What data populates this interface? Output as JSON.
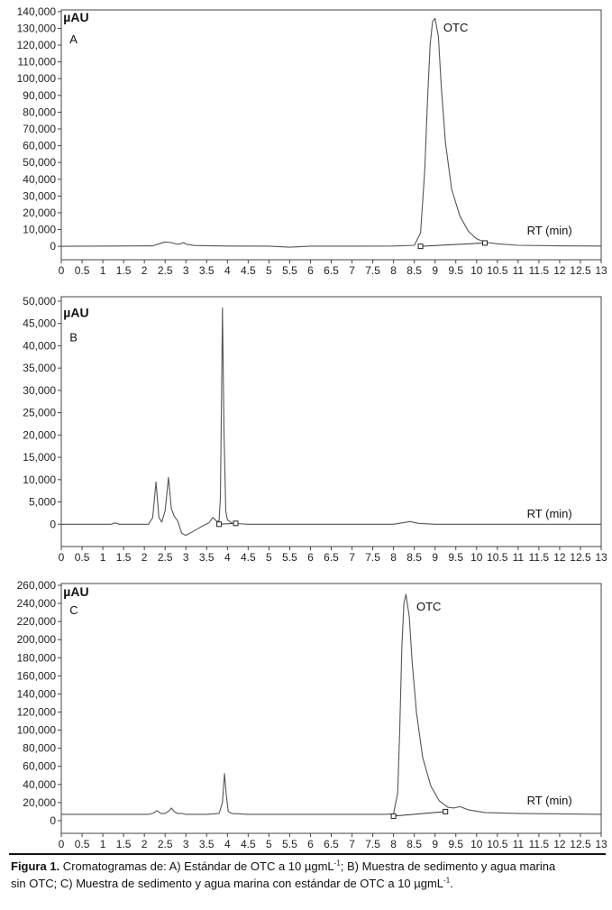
{
  "chart_data": [
    {
      "type": "line",
      "panel_label": "A",
      "unit_label": "µAU",
      "peak_label": "OTC",
      "axis_note": "RT (min)",
      "xlim": [
        0,
        13
      ],
      "ylim": [
        -8000,
        141000
      ],
      "y_ticks": [
        0,
        10000,
        20000,
        30000,
        40000,
        50000,
        60000,
        70000,
        80000,
        90000,
        100000,
        110000,
        120000,
        130000,
        140000
      ],
      "y_tick_labels": [
        "0",
        "10,000",
        "20,000",
        "30,000",
        "40,000",
        "50,000",
        "60,000",
        "70,000",
        "80,000",
        "90,000",
        "100,000",
        "110,000",
        "120,000",
        "130,000",
        "140,000"
      ],
      "x_ticks": [
        0,
        0.5,
        1,
        1.5,
        2,
        2.5,
        3,
        3.5,
        4,
        4.5,
        5,
        5.5,
        6,
        6.5,
        7,
        7.5,
        8,
        8.5,
        9,
        9.5,
        10,
        10.5,
        11,
        11.5,
        12,
        12.5,
        13
      ],
      "x_tick_labels": [
        "0",
        "0.5",
        "1",
        "1.5",
        "2",
        "2.5",
        "3",
        "3.5",
        "4",
        "4.5",
        "5",
        "5.5",
        "6",
        "6.5",
        "7",
        "7.5",
        "8",
        "8.5",
        "9",
        "9.5",
        "10",
        "10.5",
        "11",
        "11.5",
        "12",
        "12.5",
        "13"
      ],
      "series": [
        {
          "x": [
            0,
            2.2,
            2.35,
            2.5,
            2.65,
            2.8,
            2.9,
            2.95,
            3.0,
            3.2,
            4.0,
            5.0,
            5.5,
            6.0,
            7.0,
            8.0,
            8.5,
            8.65,
            8.75,
            8.82,
            8.88,
            8.94,
            9.0,
            9.08,
            9.15,
            9.25,
            9.4,
            9.6,
            9.8,
            10.0,
            10.2,
            10.5,
            11.0,
            12.0,
            13.0
          ],
          "y": [
            0,
            300,
            1500,
            2600,
            2200,
            1200,
            1800,
            2300,
            1300,
            500,
            200,
            100,
            -500,
            100,
            100,
            200,
            600,
            8000,
            45000,
            88000,
            120000,
            134000,
            136000,
            125000,
            95000,
            62000,
            34000,
            18000,
            9000,
            4500,
            2500,
            1500,
            600,
            300,
            200
          ]
        }
      ],
      "baseline": {
        "x": [
          8.65,
          10.2
        ],
        "y": [
          0,
          2000
        ]
      },
      "markers": [
        {
          "x": 8.65,
          "y": 0
        },
        {
          "x": 10.2,
          "y": 2000
        }
      ],
      "label_positions": {
        "peak": [
          9.2,
          128000
        ],
        "axis_note": [
          12.3,
          7000
        ],
        "unit": [
          0.05,
          134000
        ],
        "panel": [
          0.2,
          121000
        ]
      }
    },
    {
      "type": "line",
      "panel_label": "B",
      "unit_label": "µAU",
      "peak_label": "",
      "axis_note": "RT (min)",
      "xlim": [
        0,
        13
      ],
      "ylim": [
        -5000,
        51000
      ],
      "y_ticks": [
        0,
        5000,
        10000,
        15000,
        20000,
        25000,
        30000,
        35000,
        40000,
        45000,
        50000
      ],
      "y_tick_labels": [
        "0",
        "5,000",
        "10,000",
        "15,000",
        "20,000",
        "25,000",
        "30,000",
        "35,000",
        "40,000",
        "45,000",
        "50,000"
      ],
      "x_ticks": [
        0,
        0.5,
        1,
        1.5,
        2,
        2.5,
        3,
        3.5,
        4,
        4.5,
        5,
        5.5,
        6,
        6.5,
        7,
        7.5,
        8,
        8.5,
        9,
        9.5,
        10,
        10.5,
        11,
        11.5,
        12,
        12.5,
        13
      ],
      "x_tick_labels": [
        "0",
        "0.5",
        "1",
        "1.5",
        "2",
        "2.5",
        "3",
        "3.5",
        "4",
        "4.5",
        "5",
        "5.5",
        "6",
        "6.5",
        "7",
        "7.5",
        "8",
        "8.5",
        "9",
        "9.5",
        "10",
        "10.5",
        "11",
        "11.5",
        "12",
        "12.5",
        "13"
      ],
      "series": [
        {
          "x": [
            0,
            1.2,
            1.3,
            1.4,
            2.1,
            2.2,
            2.28,
            2.35,
            2.42,
            2.5,
            2.58,
            2.65,
            2.72,
            2.8,
            2.9,
            3.0,
            3.2,
            3.4,
            3.55,
            3.65,
            3.75,
            3.8,
            3.83,
            3.86,
            3.88,
            3.92,
            3.96,
            4.0,
            4.1,
            4.2,
            4.5,
            5.0,
            6.0,
            7.0,
            8.0,
            8.2,
            8.4,
            8.6,
            9.0,
            10.0,
            11.0,
            12.0,
            13.0
          ],
          "y": [
            0,
            0,
            300,
            0,
            0,
            1500,
            9500,
            1500,
            500,
            3000,
            10500,
            3500,
            1800,
            800,
            -2000,
            -2500,
            -1500,
            -400,
            300,
            1500,
            600,
            800,
            6000,
            30000,
            48500,
            20000,
            3000,
            1000,
            300,
            150,
            0,
            0,
            0,
            0,
            0,
            300,
            600,
            200,
            0,
            0,
            0,
            0,
            0
          ]
        }
      ],
      "baseline": {
        "x": [
          3.8,
          4.2
        ],
        "y": [
          0,
          200
        ]
      },
      "markers": [
        {
          "x": 3.8,
          "y": 0
        },
        {
          "x": 4.2,
          "y": 200
        }
      ],
      "label_positions": {
        "peak": [
          0,
          0
        ],
        "axis_note": [
          12.3,
          1500
        ],
        "unit": [
          0.05,
          46500
        ],
        "panel": [
          0.2,
          41000
        ]
      }
    },
    {
      "type": "line",
      "panel_label": "C",
      "unit_label": "µAU",
      "peak_label": "OTC",
      "axis_note": "RT (min)",
      "xlim": [
        0,
        13
      ],
      "ylim": [
        -14000,
        262000
      ],
      "y_ticks": [
        0,
        20000,
        40000,
        60000,
        80000,
        100000,
        120000,
        140000,
        160000,
        180000,
        200000,
        220000,
        240000,
        260000
      ],
      "y_tick_labels": [
        "0",
        "20,000",
        "40,000",
        "60,000",
        "80,000",
        "100,000",
        "120,000",
        "140,000",
        "160,000",
        "180,000",
        "200,000",
        "220,000",
        "240,000",
        "260,000"
      ],
      "x_ticks": [
        0,
        0.5,
        1,
        1.5,
        2,
        2.5,
        3,
        3.5,
        4,
        4.5,
        5,
        5.5,
        6,
        6.5,
        7,
        7.5,
        8,
        8.5,
        9,
        9.5,
        10,
        10.5,
        11,
        11.5,
        12,
        12.5,
        13
      ],
      "x_tick_labels": [
        "0",
        "0.5",
        "1",
        "1.5",
        "2",
        "2.5",
        "3",
        "3.5",
        "4",
        "4.5",
        "5",
        "5.5",
        "6",
        "6.5",
        "7",
        "7.5",
        "8",
        "8.5",
        "9",
        "9.5",
        "10",
        "10.5",
        "11",
        "11.5",
        "12",
        "12.5",
        "13"
      ],
      "series": [
        {
          "x": [
            0,
            2.1,
            2.2,
            2.3,
            2.4,
            2.5,
            2.6,
            2.65,
            2.72,
            2.8,
            2.9,
            3.0,
            3.5,
            3.8,
            3.88,
            3.93,
            3.97,
            4.02,
            4.1,
            4.5,
            5.0,
            6.0,
            7.0,
            7.8,
            8.0,
            8.1,
            8.15,
            8.2,
            8.25,
            8.3,
            8.38,
            8.45,
            8.55,
            8.7,
            8.9,
            9.1,
            9.3,
            9.45,
            9.6,
            9.8,
            10.2,
            11.0,
            12.0,
            13.0
          ],
          "y": [
            7000,
            7000,
            8000,
            11000,
            8000,
            8000,
            11000,
            14000,
            10000,
            8000,
            8000,
            7000,
            7000,
            8000,
            20000,
            52000,
            30000,
            10000,
            8000,
            7000,
            7000,
            7000,
            7000,
            7000,
            7500,
            30000,
            100000,
            190000,
            240000,
            250000,
            225000,
            175000,
            120000,
            70000,
            38000,
            22000,
            15000,
            14000,
            15500,
            12000,
            9000,
            8000,
            7500,
            7000
          ]
        }
      ],
      "baseline": {
        "x": [
          8.0,
          9.25
        ],
        "y": [
          5000,
          10000
        ]
      },
      "markers": [
        {
          "x": 8.0,
          "y": 5000
        },
        {
          "x": 9.25,
          "y": 10000
        }
      ],
      "label_positions": {
        "peak": [
          8.55,
          232000
        ],
        "axis_note": [
          12.3,
          18000
        ],
        "unit": [
          0.05,
          248000
        ],
        "panel": [
          0.2,
          228000
        ]
      }
    }
  ],
  "caption": {
    "label": "Figura 1.",
    "line1": " Cromatogramas de: A) Estándar de OTC a 10 µgmL",
    "sup1": "-1",
    "line1b": "; B) Muestra de sedimento y agua marina",
    "line2": "sin OTC; C) Muestra de sedimento y agua marina con estándar de OTC a 10 µgmL",
    "sup2": "-1",
    "line2b": "."
  }
}
